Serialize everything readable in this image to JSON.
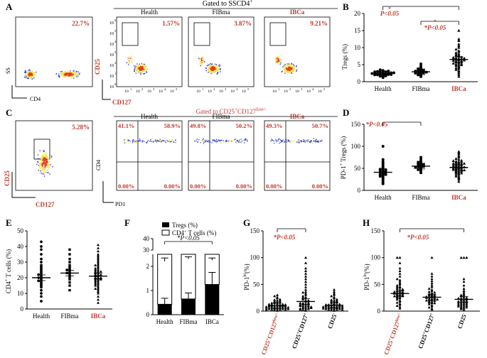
{
  "colors": {
    "red": "#c0392b",
    "black": "#000000",
    "flowHigh": "#e53a1b",
    "flowMid": "#f2e24a",
    "flowLow": "#2c3fd8"
  },
  "panels": {
    "A": {
      "letter": "A",
      "banner": "Gated to SSCD4",
      "banner_sup": "+",
      "plot1": {
        "pct": "22.7%",
        "ylabel": "SS",
        "xlabel": "CD4"
      },
      "plots": [
        {
          "label": "Health",
          "pct": "1.57%"
        },
        {
          "label": "FIBma",
          "pct": "3.87%"
        },
        {
          "label": "IBCa",
          "pct": "9.21%"
        }
      ],
      "ylabel": "CD25",
      "xlabel": "CD127",
      "tick_base": "10",
      "tick_exps": [
        "0",
        "1",
        "2",
        "3",
        "4",
        "5",
        "6"
      ]
    },
    "B": {
      "letter": "B",
      "ylabel": "Tregs (%)",
      "pval": "P<0.05",
      "star": "*"
    },
    "C": {
      "letter": "C",
      "banner": "Gated to CD25",
      "banner_sup": "+",
      "banner_mid": "CD127",
      "banner_sup2": "low/-",
      "plot1": {
        "pct": "5.28%",
        "ylabel": "CD25",
        "xlabel": "CD127"
      },
      "plots": [
        {
          "label": "Health",
          "q": [
            "41.1%",
            "58.9%",
            "0.00%",
            "0.00%"
          ]
        },
        {
          "label": "FIBma",
          "q": [
            "49.8%",
            "50.2%",
            "0.00%",
            "0.00%"
          ]
        },
        {
          "label": "IBCa",
          "q": [
            "49.3%",
            "50.7%",
            "0.00%",
            "0.00%"
          ]
        }
      ],
      "ylabel": "CD4",
      "xlabel": "PD1"
    },
    "D": {
      "letter": "D",
      "ylabel": "PD-1",
      "ylabel_sup": "+",
      "ylabel_tail": " Tregs (%)",
      "pval": "*P<0.05"
    },
    "E": {
      "letter": "E",
      "ylabel": "CD4",
      "ylabel_sup": "+",
      "ylabel_tail": " T cells (%)"
    },
    "F": {
      "letter": "F",
      "legend": [
        "Tregs (%)",
        "CD4",
        "+",
        " T cells (%)"
      ],
      "pval": "*P<0.05"
    },
    "G": {
      "letter": "G",
      "ylabel": "PD-1",
      "ylabel_sup": "hi",
      "ylabel_tail": "(%)",
      "pval": "*P<0.05"
    },
    "H": {
      "letter": "H",
      "ylabel": "PD-1",
      "ylabel_sup": "lo",
      "ylabel_tail": "(%)",
      "pval": "*P<0.05"
    },
    "group_labels": {
      "g_a": "CD25",
      "g_a_sup": "+",
      "g_a_mid": "CD127",
      "g_a_sup2": "low/-",
      "g_b": "CD25",
      "g_b_sup": "+",
      "g_b_mid": "CD127",
      "g_b_sup2": "+",
      "g_c": "CD25",
      "g_c_sup": "-"
    }
  },
  "chart_data": [
    {
      "panel": "B",
      "type": "scatter",
      "categories": [
        "Health",
        "FIBma",
        "IBCa"
      ],
      "category_colors": [
        "#000000",
        "#000000",
        "#c0392b"
      ],
      "ylabel": "Tregs (%)",
      "ylim": [
        0,
        20
      ],
      "yticks": [
        0,
        5,
        10,
        15,
        20
      ],
      "means": [
        2.3,
        2.9,
        6.5
      ],
      "series": [
        {
          "name": "Health",
          "marker": "circle",
          "values": [
            1.2,
            1.5,
            1.6,
            1.8,
            1.9,
            2.0,
            2.0,
            2.1,
            2.2,
            2.2,
            2.3,
            2.4,
            2.5,
            2.5,
            2.6,
            2.7,
            2.8,
            2.9,
            3.0,
            3.1,
            3.3,
            3.5,
            2.0,
            2.4,
            1.7,
            2.6,
            2.9,
            2.1
          ]
        },
        {
          "name": "FIBma",
          "marker": "square",
          "values": [
            1.5,
            1.8,
            2.0,
            2.2,
            2.4,
            2.6,
            2.7,
            2.9,
            3.0,
            3.2,
            3.4,
            3.6,
            3.8,
            4.1,
            4.5,
            5.2,
            2.5,
            3.1,
            2.8,
            3.3
          ]
        },
        {
          "name": "IBCa",
          "marker": "triangle",
          "values": [
            1.5,
            2.0,
            2.5,
            3.0,
            3.2,
            3.5,
            3.8,
            4.0,
            4.2,
            4.5,
            4.7,
            5.0,
            5.1,
            5.3,
            5.5,
            5.7,
            5.9,
            6.0,
            6.1,
            6.2,
            6.4,
            6.5,
            6.6,
            6.7,
            6.8,
            7.0,
            7.2,
            7.4,
            7.6,
            7.8,
            8.0,
            8.2,
            8.5,
            8.8,
            9.1,
            9.5,
            10.0,
            10.5,
            11.0,
            12.0,
            12.5,
            15.0,
            6.3,
            5.8,
            7.1,
            4.9,
            6.9,
            5.4
          ]
        }
      ],
      "brackets": [
        {
          "from": 0,
          "to": 2,
          "label": "P<0.05",
          "star": "*"
        },
        {
          "from": 1,
          "to": 2,
          "label": "*P<0.05",
          "star": "*"
        }
      ]
    },
    {
      "panel": "D",
      "type": "scatter",
      "categories": [
        "Health",
        "FIBma",
        "IBCa"
      ],
      "category_colors": [
        "#000000",
        "#000000",
        "#c0392b"
      ],
      "ylabel": "PD-1+ Tregs (%)",
      "ylim": [
        0,
        150
      ],
      "yticks": [
        0,
        50,
        100,
        150
      ],
      "means": [
        41,
        55,
        52
      ],
      "series": [
        {
          "name": "Health",
          "marker": "circle",
          "values": [
            15,
            18,
            22,
            25,
            28,
            30,
            32,
            34,
            35,
            37,
            38,
            40,
            41,
            42,
            44,
            45,
            47,
            50,
            52,
            55,
            58,
            62,
            65,
            70,
            100,
            36,
            43,
            48
          ]
        },
        {
          "name": "FIBma",
          "marker": "square",
          "values": [
            40,
            44,
            47,
            49,
            51,
            53,
            54,
            55,
            56,
            57,
            58,
            60,
            62,
            64,
            66,
            70,
            75,
            52,
            59
          ]
        },
        {
          "name": "IBCa",
          "marker": "triangle",
          "values": [
            20,
            25,
            28,
            30,
            32,
            34,
            36,
            38,
            40,
            41,
            42,
            43,
            44,
            45,
            46,
            47,
            48,
            49,
            50,
            50,
            51,
            52,
            53,
            54,
            55,
            56,
            57,
            58,
            59,
            60,
            61,
            62,
            63,
            64,
            65,
            66,
            68,
            70,
            72,
            75,
            78,
            82,
            85,
            88,
            46,
            53,
            57,
            61,
            39,
            67
          ]
        }
      ],
      "brackets": [
        {
          "from": 0,
          "to": 1,
          "label": "*P<0.05"
        }
      ]
    },
    {
      "panel": "E",
      "type": "scatter",
      "categories": [
        "Health",
        "FIBma",
        "IBCa"
      ],
      "category_colors": [
        "#000000",
        "#000000",
        "#c0392b"
      ],
      "ylabel": "CD4+ T cells (%)",
      "ylim": [
        0,
        50
      ],
      "yticks": [
        0,
        10,
        20,
        30,
        40,
        50
      ],
      "means": [
        20,
        23,
        21
      ],
      "series": [
        {
          "name": "Health",
          "marker": "circle",
          "values": [
            5,
            8,
            10,
            12,
            14,
            15,
            16,
            17,
            18,
            19,
            20,
            20,
            21,
            22,
            23,
            24,
            25,
            26,
            28,
            30,
            32,
            35,
            38,
            40,
            43,
            18,
            22,
            27
          ]
        },
        {
          "name": "FIBma",
          "marker": "square",
          "values": [
            12,
            15,
            17,
            19,
            20,
            21,
            22,
            23,
            24,
            25,
            26,
            27,
            28,
            30,
            32,
            35,
            38,
            23,
            25
          ]
        },
        {
          "name": "IBCa",
          "marker": "triangle",
          "values": [
            4,
            6,
            8,
            10,
            11,
            12,
            13,
            14,
            15,
            15,
            16,
            17,
            17,
            18,
            18,
            19,
            19,
            20,
            20,
            21,
            21,
            22,
            22,
            23,
            23,
            24,
            24,
            25,
            25,
            26,
            27,
            28,
            29,
            30,
            31,
            32,
            33,
            34,
            35,
            37,
            39,
            41,
            16,
            19,
            22,
            26,
            28,
            24,
            20,
            13
          ]
        }
      ]
    },
    {
      "panel": "F",
      "type": "bar",
      "categories": [
        "Health",
        "FIBma",
        "IBCa"
      ],
      "series": [
        {
          "name": "Tregs (%)",
          "fill": "black",
          "values": [
            0.43,
            0.65,
            1.25
          ],
          "errors": [
            0.25,
            0.25,
            0.5
          ]
        },
        {
          "name": "CD4+ T cells (%)",
          "fill": "white",
          "values": [
            20,
            22,
            21
          ],
          "errors": [
            3,
            2,
            2
          ]
        }
      ],
      "yaxis_broken": true,
      "yticks_lower": [
        0,
        1,
        2
      ],
      "yticks_upper": [
        30,
        40
      ],
      "ylim_lower": [
        0,
        2.5
      ],
      "ylim_upper": [
        30,
        40
      ],
      "bracket": {
        "from": 0,
        "to": 2,
        "label": "*P<0.05"
      }
    },
    {
      "panel": "G",
      "type": "scatter",
      "categories": [
        "CD25+CD127low/-",
        "CD25+CD127+",
        "CD25-"
      ],
      "category_colors": [
        "#c0392b",
        "#000000",
        "#000000"
      ],
      "ylabel": "PD-1hi(%)",
      "ylim": [
        0,
        150
      ],
      "yticks": [
        0,
        50,
        100,
        150
      ],
      "means": [
        10,
        18,
        11
      ],
      "series": [
        {
          "name": "CD25+CD127low/-",
          "marker": "triangle",
          "values": [
            1,
            2,
            2,
            3,
            3,
            4,
            4,
            5,
            5,
            6,
            6,
            7,
            7,
            8,
            8,
            9,
            9,
            10,
            10,
            11,
            11,
            12,
            12,
            13,
            13,
            14,
            15,
            16,
            17,
            18,
            19,
            20,
            21,
            22,
            24,
            26,
            28,
            30,
            3,
            6,
            9,
            12,
            5,
            8,
            15,
            2,
            4,
            7
          ]
        },
        {
          "name": "CD25+CD127+",
          "marker": "triangle",
          "values": [
            1,
            2,
            3,
            4,
            5,
            6,
            7,
            8,
            9,
            10,
            11,
            12,
            13,
            14,
            15,
            16,
            18,
            20,
            22,
            24,
            26,
            28,
            30,
            33,
            36,
            40,
            45,
            50,
            55,
            60,
            65,
            70,
            75,
            80,
            90,
            100,
            5,
            10,
            15,
            20,
            8,
            12,
            25,
            35,
            3,
            6
          ]
        },
        {
          "name": "CD25-",
          "marker": "triangle",
          "values": [
            1,
            2,
            2,
            3,
            3,
            4,
            4,
            5,
            5,
            6,
            6,
            7,
            7,
            8,
            8,
            9,
            9,
            10,
            10,
            11,
            11,
            12,
            12,
            13,
            14,
            15,
            16,
            17,
            18,
            19,
            20,
            21,
            22,
            24,
            26,
            28,
            30,
            33,
            36,
            40,
            3,
            6,
            9,
            12,
            5,
            8
          ]
        }
      ],
      "brackets": [
        {
          "from": 0,
          "to": 1,
          "label": "*P<0.05"
        }
      ]
    },
    {
      "panel": "H",
      "type": "scatter",
      "categories": [
        "CD25+CD127low/-",
        "CD25+CD127+",
        "CD25-"
      ],
      "category_colors": [
        "#c0392b",
        "#000000",
        "#000000"
      ],
      "ylabel": "PD-1lo(%)",
      "ylim": [
        0,
        150
      ],
      "yticks": [
        0,
        50,
        100,
        150
      ],
      "means": [
        33,
        26,
        22
      ],
      "series": [
        {
          "name": "CD25+CD127low/-",
          "marker": "triangle",
          "values": [
            5,
            8,
            10,
            12,
            14,
            16,
            18,
            20,
            22,
            24,
            25,
            26,
            27,
            28,
            29,
            30,
            31,
            32,
            33,
            34,
            35,
            36,
            37,
            38,
            39,
            40,
            42,
            44,
            46,
            48,
            50,
            52,
            55,
            58,
            60,
            65,
            70,
            75,
            80,
            90,
            100,
            100,
            30,
            33,
            36,
            28,
            41,
            45
          ]
        },
        {
          "name": "CD25+CD127+",
          "marker": "triangle",
          "values": [
            3,
            5,
            7,
            9,
            11,
            13,
            15,
            16,
            17,
            18,
            19,
            20,
            21,
            22,
            23,
            24,
            25,
            26,
            27,
            28,
            29,
            30,
            31,
            32,
            34,
            36,
            38,
            40,
            42,
            45,
            48,
            52,
            56,
            60,
            65,
            70,
            100,
            20,
            25,
            30,
            15,
            35,
            22,
            27
          ]
        },
        {
          "name": "CD25-",
          "marker": "triangle",
          "values": [
            2,
            4,
            5,
            6,
            7,
            8,
            9,
            10,
            11,
            12,
            13,
            14,
            15,
            16,
            17,
            18,
            19,
            20,
            21,
            22,
            23,
            24,
            25,
            26,
            28,
            30,
            32,
            35,
            38,
            42,
            48,
            55,
            60,
            100,
            100,
            100,
            12,
            18,
            24,
            30,
            9,
            15
          ]
        }
      ],
      "brackets": [
        {
          "from": 0,
          "to": 2,
          "label": "*P<0.05"
        }
      ]
    }
  ]
}
